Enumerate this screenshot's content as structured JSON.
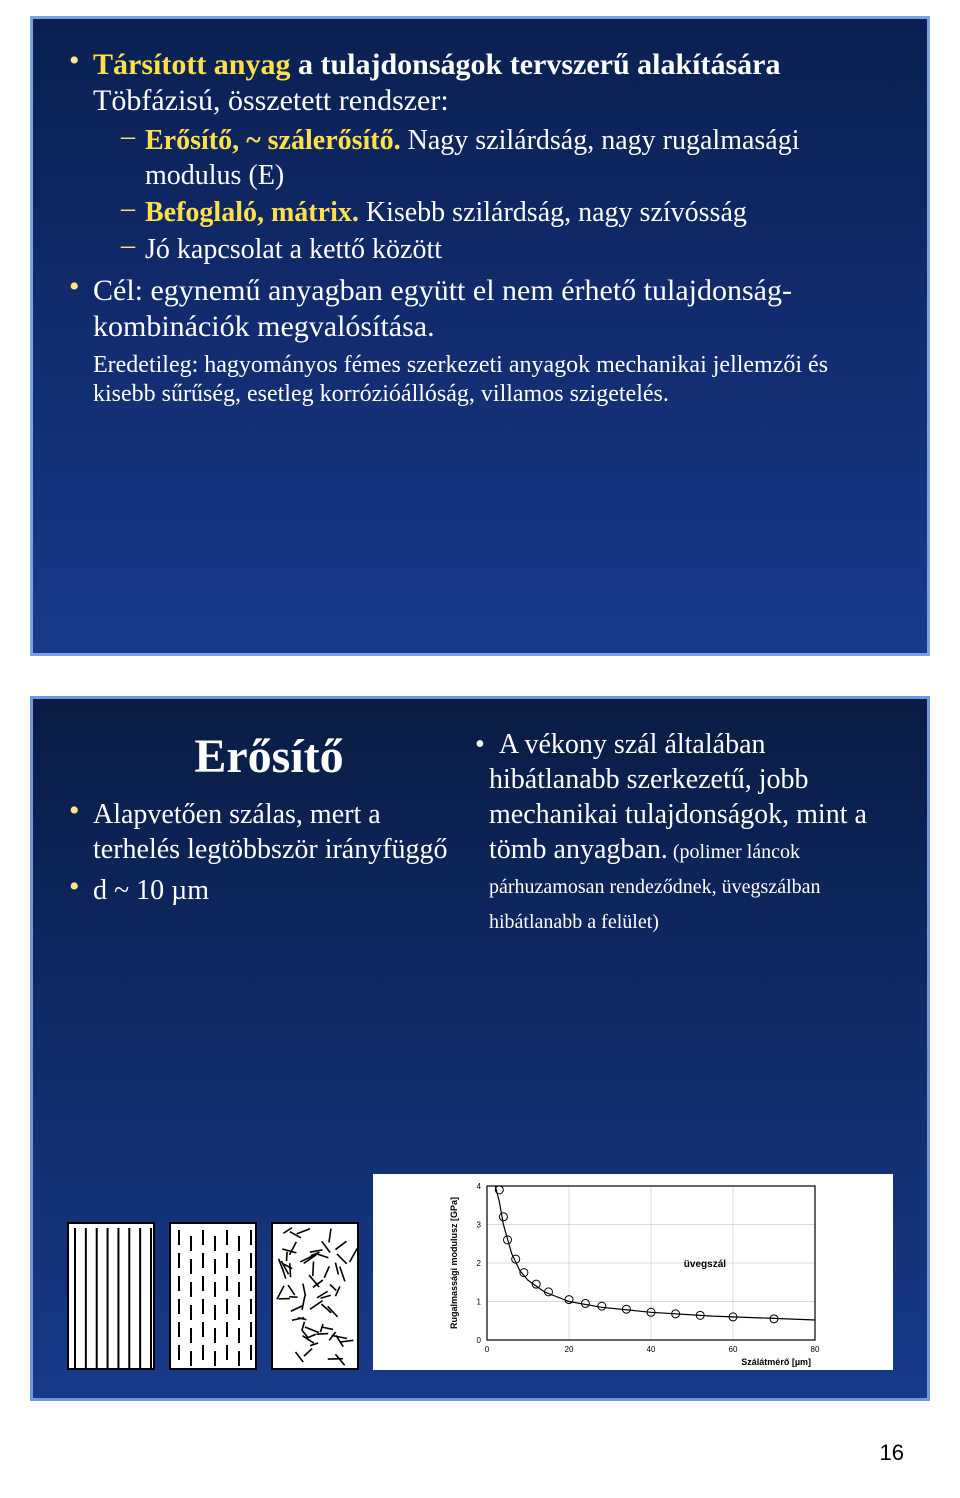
{
  "page_number": "16",
  "slide1": {
    "border_color": "#7aa0e8",
    "bg_gradient": [
      "#0a2050",
      "#102a6a",
      "#183a8a"
    ],
    "bullet_color": "#ffe680",
    "text_color": "#ffffff",
    "highlight_color": "#ffe04a",
    "fontsize_l1": 30,
    "fontsize_l2": 28,
    "fontsize_note": 24,
    "b1_l1": "Társított anyag",
    "b1_l1b": " a tulajdonságok tervszerű alakítására",
    "b1_l2": "Töbfázisú, összetett rendszer:",
    "b1_s1a": "Erősítő, ~ szálerősítő.",
    "b1_s1b": "  Nagy szilárdság, nagy rugalmasági modulus (E)",
    "b1_s2a": "Befoglaló, mátrix.",
    "b1_s2b": " Kisebb szilárdság, nagy szívósság",
    "b1_s3": "Jó kapcsolat a kettő között",
    "b2": "Cél: egynemű anyagban együtt el nem érhető tulajdonság-kombinációk megvalósítása.",
    "b2_note": "Eredetileg: hagyományos fémes szerkezeti anyagok mechanikai jellemzői és kisebb sűrűség, esetleg korrózióállóság, villamos szigetelés."
  },
  "slide2": {
    "border_color": "#6f96df",
    "bg_gradient": [
      "#091c44",
      "#0e2760",
      "#173a88"
    ],
    "title": "Erősítő",
    "title_fontsize": 48,
    "left_b1": "Alapvetően szálas, mert a terhelés legtöbbször irányfüggő",
    "left_b2": "d ~ 10 µm",
    "right_intro": "A vékony szál általában hibátlanabb szerkezetű, jobb mechanikai tulajdonságok, mint a tömb anyagban.",
    "right_small": " (polimer láncok párhuzamosan rendeződnek, üvegszálban hibátlanabb a felület)",
    "patterns": [
      {
        "type": "vertical_lines",
        "count": 8
      },
      {
        "type": "vertical_dashed",
        "cols": 7,
        "rows": 6
      },
      {
        "type": "random_short",
        "count": 60
      }
    ],
    "chart": {
      "type": "scatter_with_curve",
      "title": "",
      "xlabel": "Szálátmérő [µm]",
      "ylabel": "Rugalmassági modulusz [GPa]",
      "label_fontsize": 8,
      "tick_fontsize": 8,
      "legend_label": "üvegszál",
      "legend_fontsize": 9,
      "xlim": [
        0,
        80
      ],
      "ylim": [
        0,
        4
      ],
      "xticks": [
        0,
        20,
        40,
        60,
        80
      ],
      "yticks": [
        0,
        1,
        2,
        3,
        4
      ],
      "background_color": "#ffffff",
      "grid_color": "#cccccc",
      "axis_color": "#000000",
      "marker_style": "circle_open",
      "marker_size": 4,
      "marker_color": "#000000",
      "line_color": "#000000",
      "line_width": 1.2,
      "points": [
        [
          3,
          3.9
        ],
        [
          4,
          3.2
        ],
        [
          5,
          2.6
        ],
        [
          7,
          2.1
        ],
        [
          9,
          1.75
        ],
        [
          12,
          1.45
        ],
        [
          15,
          1.25
        ],
        [
          20,
          1.05
        ],
        [
          24,
          0.95
        ],
        [
          28,
          0.88
        ],
        [
          34,
          0.8
        ],
        [
          40,
          0.72
        ],
        [
          46,
          0.68
        ],
        [
          52,
          0.64
        ],
        [
          60,
          0.6
        ],
        [
          70,
          0.55
        ]
      ],
      "curve": [
        [
          2,
          4.0
        ],
        [
          3,
          3.6
        ],
        [
          4,
          3.0
        ],
        [
          6,
          2.25
        ],
        [
          8,
          1.8
        ],
        [
          10,
          1.55
        ],
        [
          14,
          1.25
        ],
        [
          20,
          1.0
        ],
        [
          28,
          0.85
        ],
        [
          40,
          0.72
        ],
        [
          55,
          0.62
        ],
        [
          70,
          0.56
        ],
        [
          80,
          0.52
        ]
      ]
    }
  }
}
